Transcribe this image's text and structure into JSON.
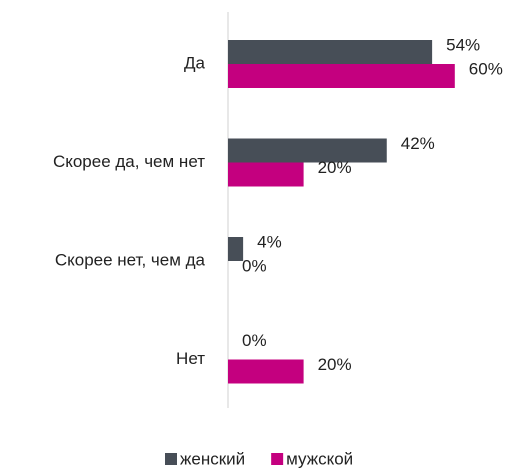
{
  "chart_data": {
    "type": "barh",
    "categories": [
      "Да",
      "Скорее да, чем нет",
      "Скорее нет, чем да",
      "Нет"
    ],
    "series": [
      {
        "name": "женский",
        "color": "#474e57",
        "values": [
          54,
          42,
          4,
          0
        ],
        "value_labels": [
          "54%",
          "42%",
          "4%",
          "0%"
        ]
      },
      {
        "name": "мужской",
        "color": "#c4007f",
        "values": [
          60,
          20,
          0,
          20
        ],
        "value_labels": [
          "60%",
          "20%",
          "0%",
          "20%"
        ]
      }
    ],
    "legend": "bottom"
  }
}
